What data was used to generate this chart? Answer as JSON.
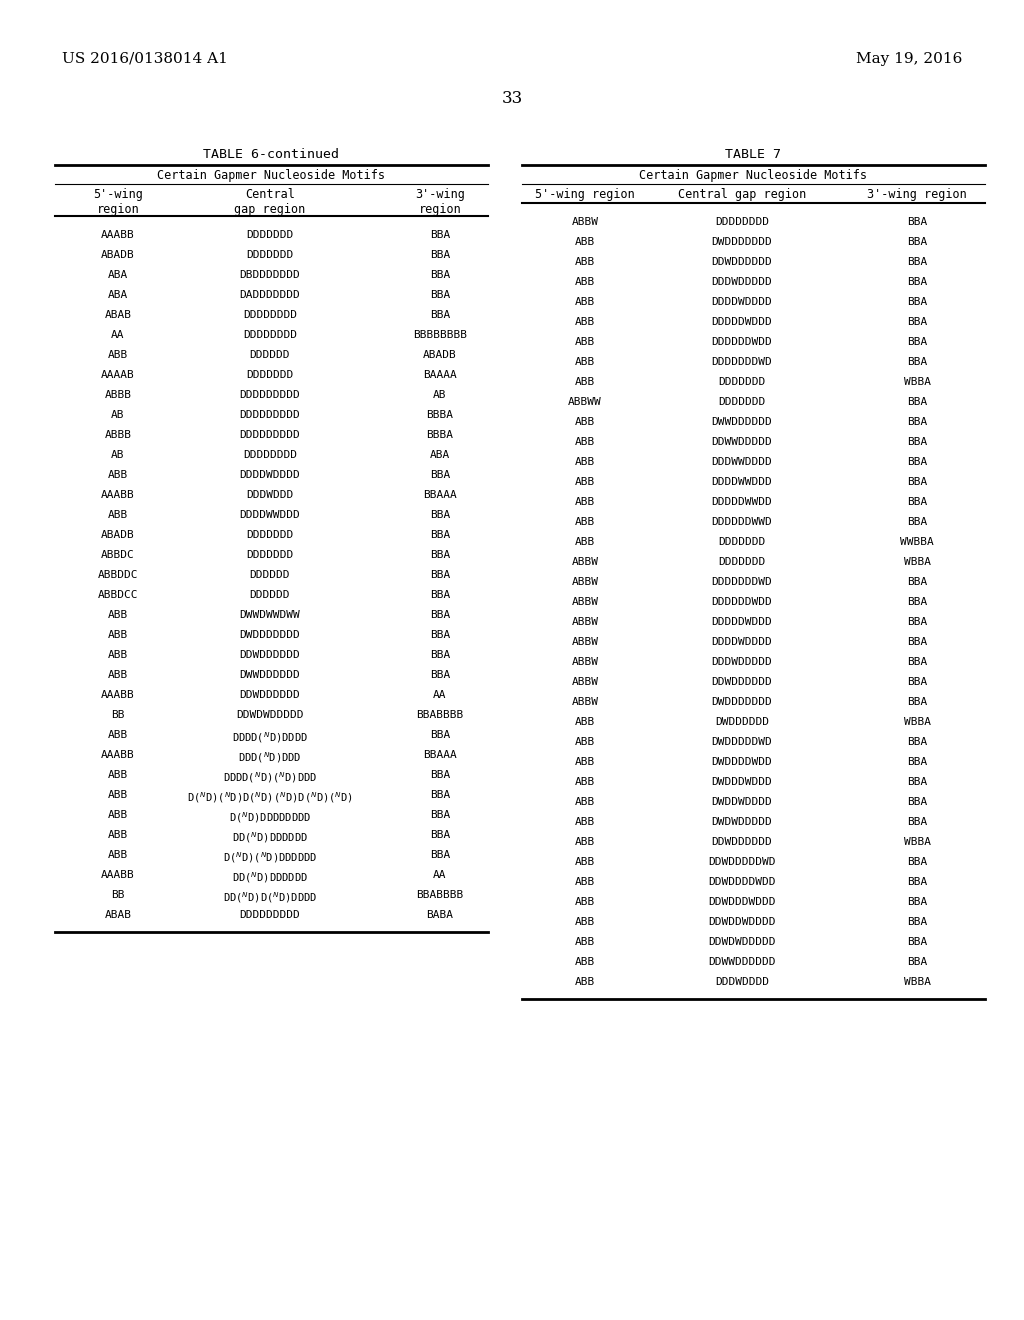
{
  "page_number": "33",
  "left_header": "US 2016/0138014 A1",
  "right_header": "May 19, 2016",
  "table6_title": "TABLE 6-continued",
  "table6_subtitle": "Certain Gapmer Nucleoside Motifs",
  "table6_col_headers": [
    "5'-wing\nregion",
    "Central\ngap region",
    "3'-wing\nregion"
  ],
  "table6_rows": [
    [
      "AAABB",
      "DDDDDDD",
      "BBA"
    ],
    [
      "ABADB",
      "DDDDDDD",
      "BBA"
    ],
    [
      "ABA",
      "DBDDDDDDD",
      "BBA"
    ],
    [
      "ABA",
      "DADDDDDDD",
      "BBA"
    ],
    [
      "ABAB",
      "DDDDDDDD",
      "BBA"
    ],
    [
      "AA",
      "DDDDDDDD",
      "BBBBBBBB"
    ],
    [
      "ABB",
      "DDDDDD",
      "ABADB"
    ],
    [
      "AAAAB",
      "DDDDDDD",
      "BAAAA"
    ],
    [
      "ABBB",
      "DDDDDDDDD",
      "AB"
    ],
    [
      "AB",
      "DDDDDDDDD",
      "BBBA"
    ],
    [
      "ABBB",
      "DDDDDDDDD",
      "BBBA"
    ],
    [
      "AB",
      "DDDDDDDD",
      "ABA"
    ],
    [
      "ABB",
      "DDDDWDDDD",
      "BBA"
    ],
    [
      "AAABB",
      "DDDWDDD",
      "BBAAA"
    ],
    [
      "ABB",
      "DDDDWWDDD",
      "BBA"
    ],
    [
      "ABADB",
      "DDDDDDD",
      "BBA"
    ],
    [
      "ABBDC",
      "DDDDDDD",
      "BBA"
    ],
    [
      "ABBDDC",
      "DDDDDD",
      "BBA"
    ],
    [
      "ABBDCC",
      "DDDDDD",
      "BBA"
    ],
    [
      "ABB",
      "DWWDWWDWW",
      "BBA"
    ],
    [
      "ABB",
      "DWDDDDDDD",
      "BBA"
    ],
    [
      "ABB",
      "DDWDDDDDD",
      "BBA"
    ],
    [
      "ABB",
      "DWWDDDDDD",
      "BBA"
    ],
    [
      "AAABB",
      "DDWDDDDDD",
      "AA"
    ],
    [
      "BB",
      "DDWDWDDDDD",
      "BBABBBB"
    ],
    [
      "ABB",
      "DDDD(ᴾD)DDDD",
      "BBA"
    ],
    [
      "AAABB",
      "DDD(ᴾD)DDD",
      "BBAAA"
    ],
    [
      "ABB",
      "DDDD(ᴾD)(ᴾD)DDD",
      "BBA"
    ],
    [
      "ABB",
      "D(ᴾD)(ᴾD)D(ᴾD)(ᴾD)D(ᴾD)(ᴾD)",
      "BBA"
    ],
    [
      "ABB",
      "D(ᴾD)DDDDDDDD",
      "BBA"
    ],
    [
      "ABB",
      "DD(ᴾD)DDDDDD",
      "BBA"
    ],
    [
      "ABB",
      "D(ᴾD)(ᴾD)DDDDDD",
      "BBA"
    ],
    [
      "AAABB",
      "DD(ᴾD)DDDDDD",
      "AA"
    ],
    [
      "BB",
      "DD(ᴾD)D(ᴾD)DDDD",
      "BBABBBB"
    ],
    [
      "ABAB",
      "DDDDDDDDD",
      "BABA"
    ]
  ],
  "table7_title": "TABLE 7",
  "table7_subtitle": "Certain Gapmer Nucleoside Motifs",
  "table7_col_headers": [
    "5'-wing region",
    "Central gap region",
    "3'-wing region"
  ],
  "table7_rows": [
    [
      "ABBW",
      "DDDDDDDD",
      "BBA"
    ],
    [
      "ABB",
      "DWDDDDDDD",
      "BBA"
    ],
    [
      "ABB",
      "DDWDDDDDD",
      "BBA"
    ],
    [
      "ABB",
      "DDDWDDDDD",
      "BBA"
    ],
    [
      "ABB",
      "DDDDWDDDD",
      "BBA"
    ],
    [
      "ABB",
      "DDDDDWDDD",
      "BBA"
    ],
    [
      "ABB",
      "DDDDDDWDD",
      "BBA"
    ],
    [
      "ABB",
      "DDDDDDDWD",
      "BBA"
    ],
    [
      "ABB",
      "DDDDDDD",
      "WBBA"
    ],
    [
      "ABBWW",
      "DDDDDDD",
      "BBA"
    ],
    [
      "ABB",
      "DWWDDDDDD",
      "BBA"
    ],
    [
      "ABB",
      "DDWWDDDDD",
      "BBA"
    ],
    [
      "ABB",
      "DDDWWDDDD",
      "BBA"
    ],
    [
      "ABB",
      "DDDDWWDDD",
      "BBA"
    ],
    [
      "ABB",
      "DDDDDWWDD",
      "BBA"
    ],
    [
      "ABB",
      "DDDDDDWWD",
      "BBA"
    ],
    [
      "ABB",
      "DDDDDDD",
      "WWBBA"
    ],
    [
      "ABBW",
      "DDDDDDD",
      "WBBA"
    ],
    [
      "ABBW",
      "DDDDDDDWD",
      "BBA"
    ],
    [
      "ABBW",
      "DDDDDDWDD",
      "BBA"
    ],
    [
      "ABBW",
      "DDDDDWDDD",
      "BBA"
    ],
    [
      "ABBW",
      "DDDDWDDDD",
      "BBA"
    ],
    [
      "ABBW",
      "DDDWDDDDD",
      "BBA"
    ],
    [
      "ABBW",
      "DDWDDDDDD",
      "BBA"
    ],
    [
      "ABBW",
      "DWDDDDDDD",
      "BBA"
    ],
    [
      "ABB",
      "DWDDDDDD",
      "WBBA"
    ],
    [
      "ABB",
      "DWDDDDDWD",
      "BBA"
    ],
    [
      "ABB",
      "DWDDDDWDD",
      "BBA"
    ],
    [
      "ABB",
      "DWDDDWDDD",
      "BBA"
    ],
    [
      "ABB",
      "DWDDWDDDD",
      "BBA"
    ],
    [
      "ABB",
      "DWDWDDDDD",
      "BBA"
    ],
    [
      "ABB",
      "DDWDDDDDD",
      "WBBA"
    ],
    [
      "ABB",
      "DDWDDDDDWD",
      "BBA"
    ],
    [
      "ABB",
      "DDWDDDDWDD",
      "BBA"
    ],
    [
      "ABB",
      "DDWDDDWDDD",
      "BBA"
    ],
    [
      "ABB",
      "DDWDDWDDDD",
      "BBA"
    ],
    [
      "ABB",
      "DDWDWDDDDD",
      "BBA"
    ],
    [
      "ABB",
      "DDWWDDDDDD",
      "BBA"
    ],
    [
      "ABB",
      "DDDWDDDD",
      "WBBA"
    ]
  ]
}
